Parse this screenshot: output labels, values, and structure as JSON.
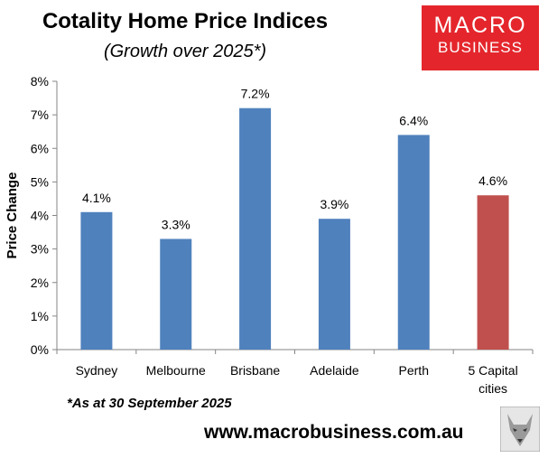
{
  "header": {
    "title": "Cotality Home Price Indices",
    "subtitle": "(Growth over 2025*)"
  },
  "logo": {
    "line1": "MACRO",
    "line2": "BUSINESS"
  },
  "footer": {
    "note": "*As at 30 September 2025",
    "website": "www.macrobusiness.com.au"
  },
  "chart_data": {
    "type": "bar",
    "title": "Cotality Home Price Indices",
    "subtitle": "(Growth over 2025*)",
    "xlabel": "",
    "ylabel": "Price Change",
    "categories": [
      "Sydney",
      "Melbourne",
      "Brisbane",
      "Adelaide",
      "Perth",
      "5 Capital cities"
    ],
    "values": [
      4.1,
      3.3,
      7.2,
      3.9,
      6.4,
      4.6
    ],
    "data_labels": [
      "4.1%",
      "3.3%",
      "7.2%",
      "3.9%",
      "6.4%",
      "4.6%"
    ],
    "ylim": [
      0,
      8
    ],
    "yticks": [
      "0%",
      "1%",
      "2%",
      "3%",
      "4%",
      "5%",
      "6%",
      "7%",
      "8%"
    ],
    "grid": false,
    "colors": [
      "#4f81bd",
      "#4f81bd",
      "#4f81bd",
      "#4f81bd",
      "#4f81bd",
      "#c0504d"
    ]
  }
}
